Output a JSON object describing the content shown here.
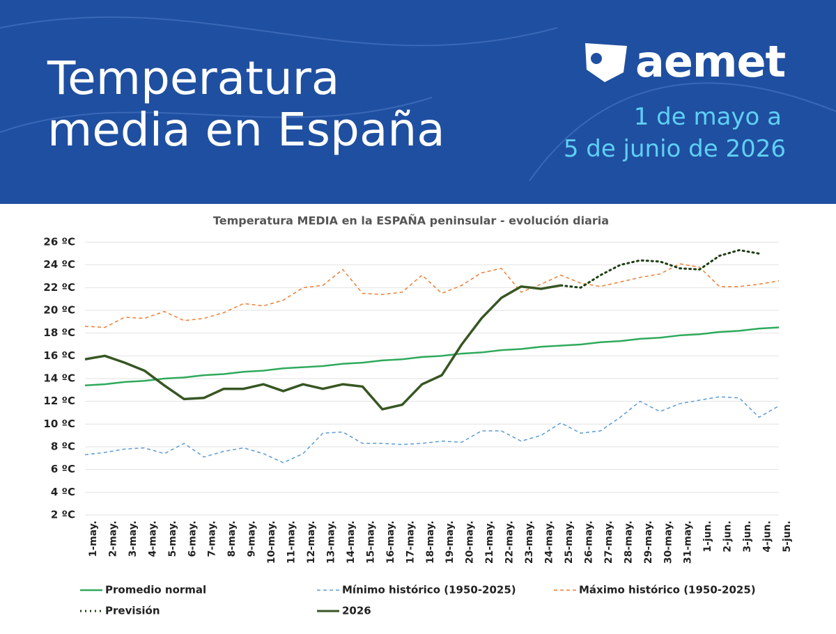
{
  "header": {
    "title_lines": [
      "Temperatura",
      "media en España"
    ],
    "logo": "aemet",
    "date_lines": [
      "1 de mayo a",
      "5 de junio de 2026"
    ]
  },
  "chart_data": {
    "type": "line",
    "title": "Temperatura MEDIA en la ESPAÑA peninsular - evolución diaria",
    "categories": [
      "1-may.",
      "2-may.",
      "3-may.",
      "4-may.",
      "5-may.",
      "6-may.",
      "7-may.",
      "8-may.",
      "9-may.",
      "10-may.",
      "11-may.",
      "12-may.",
      "13-may.",
      "14-may.",
      "15-may.",
      "16-may.",
      "17-may.",
      "18-may.",
      "19-may.",
      "20-may.",
      "21-may.",
      "22-may.",
      "23-may.",
      "24-may.",
      "25-may.",
      "26-may.",
      "27-may.",
      "28-may.",
      "29-may.",
      "30-may.",
      "31-may.",
      "1-jun.",
      "2-jun.",
      "3-jun.",
      "4-jun.",
      "5-jun."
    ],
    "ylim": [
      2,
      26
    ],
    "yticks": [
      {
        "value": 2,
        "label": "2 ºC"
      },
      {
        "value": 4,
        "label": "4 ºC"
      },
      {
        "value": 6,
        "label": "6 ºC"
      },
      {
        "value": 8,
        "label": "8 ºC"
      },
      {
        "value": 10,
        "label": "10 ºC"
      },
      {
        "value": 12,
        "label": "12 ºC"
      },
      {
        "value": 14,
        "label": "14 ºC"
      },
      {
        "value": 16,
        "label": "16 ºC"
      },
      {
        "value": 18,
        "label": "18 ºC"
      },
      {
        "value": 20,
        "label": "20 ºC"
      },
      {
        "value": 22,
        "label": "22 ºC"
      },
      {
        "value": 24,
        "label": "24 ºC"
      },
      {
        "value": 26,
        "label": "26 ºC"
      }
    ],
    "grid": true,
    "series": [
      {
        "name": "Promedio normal",
        "color": "#2eaa5c",
        "dash": "solid",
        "width": 2.5,
        "values": [
          13.4,
          13.5,
          13.7,
          13.8,
          14.0,
          14.1,
          14.3,
          14.4,
          14.6,
          14.7,
          14.9,
          15.0,
          15.1,
          15.3,
          15.4,
          15.6,
          15.7,
          15.9,
          16.0,
          16.2,
          16.3,
          16.5,
          16.6,
          16.8,
          16.9,
          17.0,
          17.2,
          17.3,
          17.5,
          17.6,
          17.8,
          17.9,
          18.1,
          18.2,
          18.4,
          18.5
        ]
      },
      {
        "name": "Mínimo histórico (1950-2025)",
        "color": "#5b9bd5",
        "dash": "dashed",
        "width": 1.5,
        "values": [
          7.3,
          7.5,
          7.8,
          7.9,
          7.4,
          8.3,
          7.1,
          7.6,
          7.9,
          7.4,
          6.6,
          7.4,
          9.2,
          9.3,
          8.3,
          8.3,
          8.2,
          8.3,
          8.5,
          8.4,
          9.4,
          9.4,
          8.5,
          9.0,
          10.1,
          9.2,
          9.4,
          10.6,
          12.0,
          11.1,
          11.8,
          12.1,
          12.4,
          12.3,
          10.6,
          11.6
        ]
      },
      {
        "name": "Máximo histórico (1950-2025)",
        "color": "#ed7d31",
        "dash": "dashed",
        "width": 1.5,
        "values": [
          18.6,
          18.5,
          19.4,
          19.3,
          19.9,
          19.1,
          19.3,
          19.8,
          20.6,
          20.4,
          20.9,
          22.0,
          22.2,
          23.6,
          21.5,
          21.4,
          21.6,
          23.1,
          21.5,
          22.2,
          23.3,
          23.7,
          21.6,
          22.3,
          23.1,
          22.4,
          22.1,
          22.5,
          22.9,
          23.2,
          24.1,
          23.8,
          22.1,
          22.1,
          22.3,
          22.6
        ]
      },
      {
        "name": "Previsión",
        "color": "#1e3d14",
        "dash": "dotted",
        "width": 3,
        "values": [
          null,
          null,
          null,
          null,
          null,
          null,
          null,
          null,
          null,
          null,
          null,
          null,
          null,
          null,
          null,
          null,
          null,
          null,
          null,
          null,
          null,
          null,
          null,
          null,
          22.2,
          22.0,
          23.1,
          24.0,
          24.4,
          24.3,
          23.7,
          23.6,
          24.8,
          25.3,
          25.0,
          null
        ]
      },
      {
        "name": "2026",
        "color": "#375623",
        "dash": "solid",
        "width": 3.5,
        "values": [
          15.7,
          16.0,
          15.4,
          14.7,
          13.4,
          12.2,
          12.3,
          13.1,
          13.1,
          13.5,
          12.9,
          13.5,
          13.1,
          13.5,
          13.3,
          11.3,
          11.7,
          13.5,
          14.3,
          17.0,
          19.3,
          21.1,
          22.1,
          21.9,
          22.2,
          null,
          null,
          null,
          null,
          null,
          null,
          null,
          null,
          null,
          null,
          null
        ]
      }
    ]
  }
}
